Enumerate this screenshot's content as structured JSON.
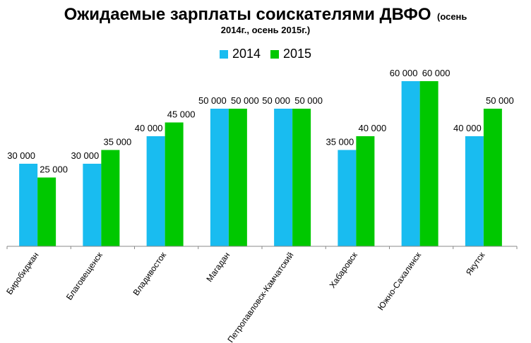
{
  "colors": {
    "series_2014": "#19BCF0",
    "series_2015": "#00C800",
    "axis": "#888888",
    "text": "#000000"
  },
  "chart_data": {
    "type": "bar",
    "title": "Ожидаемые зарплаты соискателями ДВФО",
    "subtitle_part1": "(осень",
    "subtitle_part2": "2014г., осень 2015г.)",
    "categories": [
      "Биробиджан",
      "Благовещенск",
      "Владивосток",
      "Магадан",
      "Петропавловск-Камчатский",
      "Хабаровск",
      "Южно-Сахалинск",
      "Якутск"
    ],
    "series": [
      {
        "name": "2014",
        "values": [
          30000,
          30000,
          40000,
          50000,
          50000,
          35000,
          60000,
          40000
        ],
        "labels": [
          "30 000",
          "30 000",
          "40 000",
          "50 000",
          "50 000",
          "35 000",
          "60 000",
          "40 000"
        ]
      },
      {
        "name": "2015",
        "values": [
          25000,
          35000,
          45000,
          50000,
          50000,
          40000,
          60000,
          50000
        ],
        "labels": [
          "25 000",
          "35 000",
          "45 000",
          "50 000",
          "50 000",
          "40 000",
          "60 000",
          "50 000"
        ]
      }
    ],
    "ylim": [
      0,
      60000
    ],
    "grid": false,
    "legend_position": "top"
  }
}
